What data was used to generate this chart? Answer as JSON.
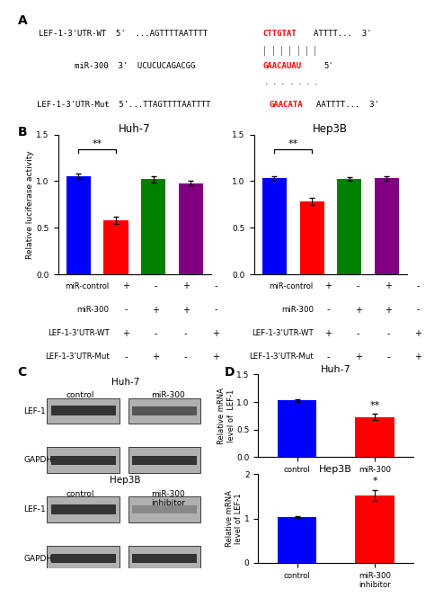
{
  "panel_A": {
    "row1_prefix": "LEF-1-3'UTR-WT  5'  ...AGTTTTAATTTT",
    "row1_red": "CTTGTAT",
    "row1_suffix": "ATTTT...  3'",
    "row2_prefix": "miR-300  3'  UCUCUCAGACGG",
    "row2_red": "GAACAUAU",
    "row2_suffix": "5'",
    "row3_prefix": "LEF-1-3'UTR-Mut  5'...TTAGTTTTAATTTT",
    "row3_red": "GAACATA",
    "row3_suffix": "AATTTT...  3'"
  },
  "panel_B": {
    "huh7_title": "Huh-7",
    "huh7_values": [
      1.05,
      0.58,
      1.02,
      0.98
    ],
    "huh7_errors": [
      0.03,
      0.04,
      0.03,
      0.025
    ],
    "hep3b_title": "Hep3B",
    "hep3b_values": [
      1.03,
      0.78,
      1.02,
      1.03
    ],
    "hep3b_errors": [
      0.025,
      0.04,
      0.02,
      0.025
    ],
    "colors": [
      "#0000FF",
      "#FF0000",
      "#008000",
      "#800080"
    ],
    "ylabel": "Relative luciferase activity",
    "ylim": [
      0,
      1.5
    ],
    "yticks": [
      0,
      0.5,
      1.0,
      1.5
    ],
    "sig_label": "**",
    "table_rows": [
      "miR-control",
      "miR-300",
      "LEF-1-3'UTR-WT",
      "LEF-1-3'UTR-Mut"
    ],
    "table_cols_huh7": [
      [
        "+",
        "-",
        "+",
        "-"
      ],
      [
        "-",
        "+",
        "-",
        "+"
      ],
      [
        "+",
        "+",
        "-",
        "-"
      ],
      [
        "-",
        "-",
        "+",
        "+"
      ]
    ],
    "table_cols_hep3b": [
      [
        "+",
        "-",
        "+",
        "-"
      ],
      [
        "-",
        "+",
        "-",
        "+"
      ],
      [
        "+",
        "+",
        "-",
        "-"
      ],
      [
        "-",
        "-",
        "+",
        "+"
      ]
    ]
  },
  "panel_D_huh7": {
    "title": "Huh-7",
    "values": [
      1.03,
      0.73
    ],
    "errors": [
      0.025,
      0.055
    ],
    "colors": [
      "#0000FF",
      "#FF0000"
    ],
    "ylabel": "Relative mRNA\nlevel of  LEF-1",
    "ylim": [
      0,
      1.5
    ],
    "yticks": [
      0,
      0.5,
      1.0,
      1.5
    ],
    "categories": [
      "control",
      "miR-300"
    ],
    "sig_label": "**"
  },
  "panel_D_hep3b": {
    "title": "Hep3B",
    "values": [
      1.03,
      1.52
    ],
    "errors": [
      0.025,
      0.12
    ],
    "colors": [
      "#0000FF",
      "#FF0000"
    ],
    "ylabel": "Relative mRNA\nlevel of LEF-1",
    "ylim": [
      0,
      2.0
    ],
    "yticks": [
      0,
      1.0,
      2.0
    ],
    "categories": [
      "control",
      "miR-300\ninhibitor"
    ],
    "sig_label": "*"
  },
  "bg_color": "#FFFFFF"
}
